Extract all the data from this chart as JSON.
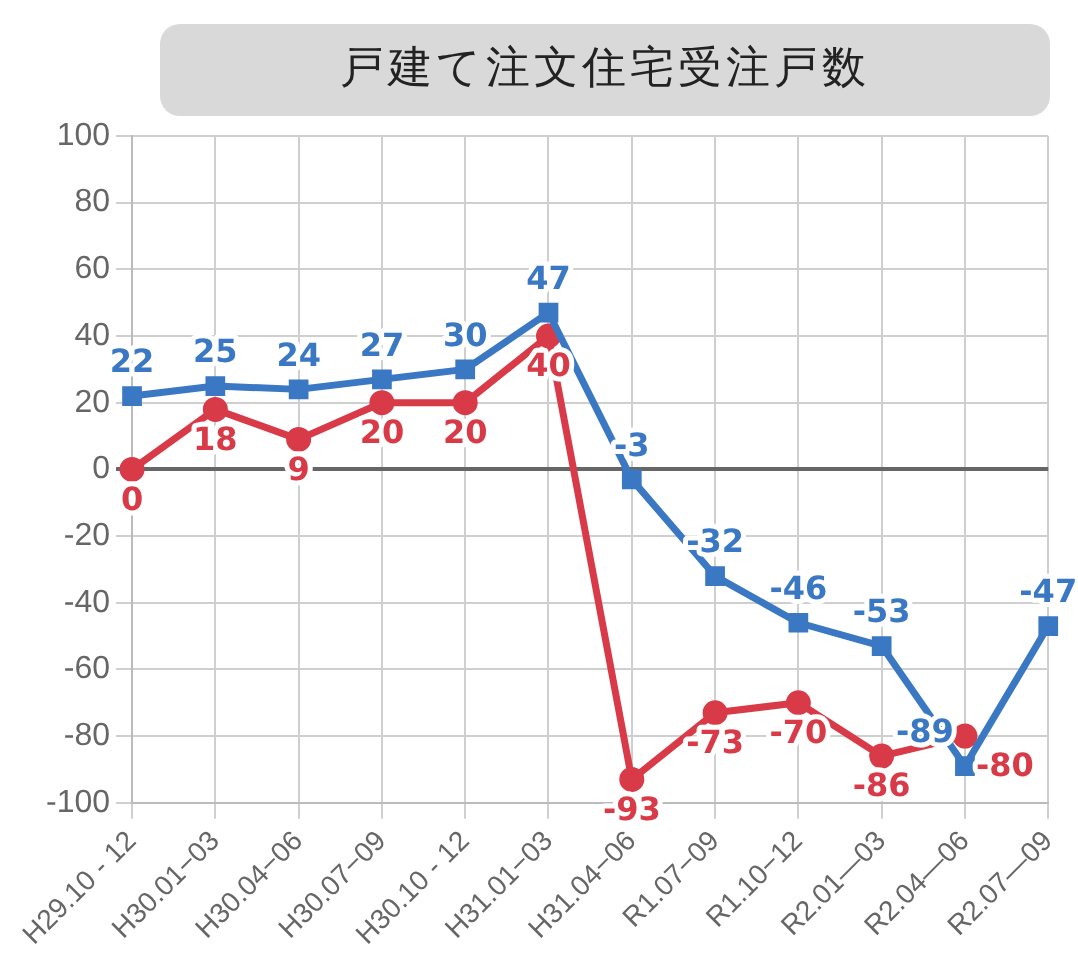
{
  "chart_data": {
    "type": "line",
    "title": "戸建て注文住宅受注戸数",
    "categories": [
      "H29.10 - 12",
      "H30.01−03",
      "H30.04−06",
      "H30.07−09",
      "H30.10 - 12",
      "H31.01−03",
      "H31.04−06",
      "R1.07−09",
      "R1.10−12",
      "R2.01―03",
      "R2.04―06",
      "R2.07―09"
    ],
    "series": [
      {
        "color": "#3a78c4",
        "marker": "square",
        "values": [
          22,
          25,
          24,
          27,
          30,
          47,
          -3,
          -32,
          -46,
          -53,
          -89,
          -47
        ]
      },
      {
        "color": "#d93a48",
        "marker": "circle",
        "values": [
          0,
          18,
          9,
          20,
          20,
          40,
          -93,
          -73,
          -70,
          -86,
          -80,
          null
        ]
      }
    ],
    "ylim": [
      -100,
      100
    ],
    "yticks": [
      -100,
      -80,
      -60,
      -40,
      -20,
      0,
      20,
      40,
      60,
      80,
      100
    ],
    "grid": true,
    "legend": false,
    "data_labels": true
  }
}
